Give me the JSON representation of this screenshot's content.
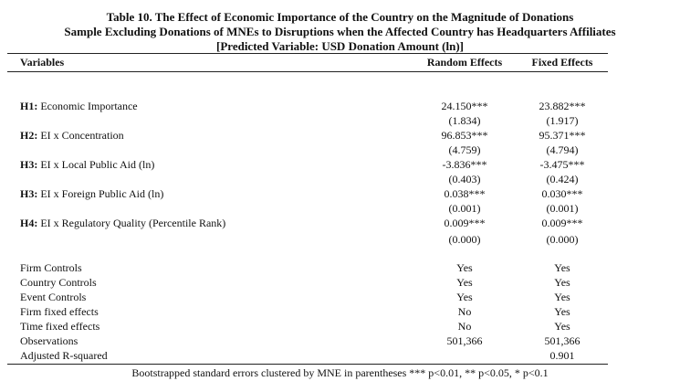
{
  "title_lines": [
    "Table 10. The Effect of Economic Importance of the Country on the Magnitude of Donations",
    "Sample Excluding Donations of MNEs to Disruptions when the Affected Country has Headquarters Affiliates",
    "[Predicted Variable: USD Donation Amount (ln)]"
  ],
  "headers": {
    "variables": "Variables",
    "random": "Random Effects",
    "fixed": "Fixed Effects"
  },
  "hypotheses": [
    {
      "prefix": "H1:",
      "label": "Economic Importance",
      "re": "24.150***",
      "re_se": "(1.834)",
      "fe": "23.882***",
      "fe_se": "(1.917)"
    },
    {
      "prefix": "H2:",
      "label": "EI x Concentration",
      "re": "96.853***",
      "re_se": "(4.759)",
      "fe": "95.371***",
      "fe_se": "(4.794)"
    },
    {
      "prefix": "H3:",
      "label": "EI x Local Public Aid (ln)",
      "re": "-3.836***",
      "re_se": "(0.403)",
      "fe": "-3.475***",
      "fe_se": "(0.424)"
    },
    {
      "prefix": "H3:",
      "label": "EI x Foreign Public Aid (ln)",
      "re": "0.038***",
      "re_se": "(0.001)",
      "fe": "0.030***",
      "fe_se": "(0.001)"
    },
    {
      "prefix": "H4:",
      "label": "EI x Regulatory Quality (Percentile Rank)",
      "re": "0.009***",
      "re_se": "(0.000)",
      "fe": "0.009***",
      "fe_se": "(0.000)"
    }
  ],
  "controls": [
    {
      "label": "Firm Controls",
      "re": "Yes",
      "fe": "Yes"
    },
    {
      "label": "Country Controls",
      "re": "Yes",
      "fe": "Yes"
    },
    {
      "label": "Event Controls",
      "re": "Yes",
      "fe": "Yes"
    },
    {
      "label": "Firm fixed effects",
      "re": "No",
      "fe": "Yes"
    },
    {
      "label": "Time fixed effects",
      "re": "No",
      "fe": "Yes"
    },
    {
      "label": "Observations",
      "re": "501,366",
      "fe": "501,366"
    },
    {
      "label": "Adjusted R-squared",
      "re": "",
      "fe": "0.901"
    }
  ],
  "note": "Bootstrapped standard errors clustered by MNE in parentheses *** p<0.01, ** p<0.05, * p<0.1"
}
